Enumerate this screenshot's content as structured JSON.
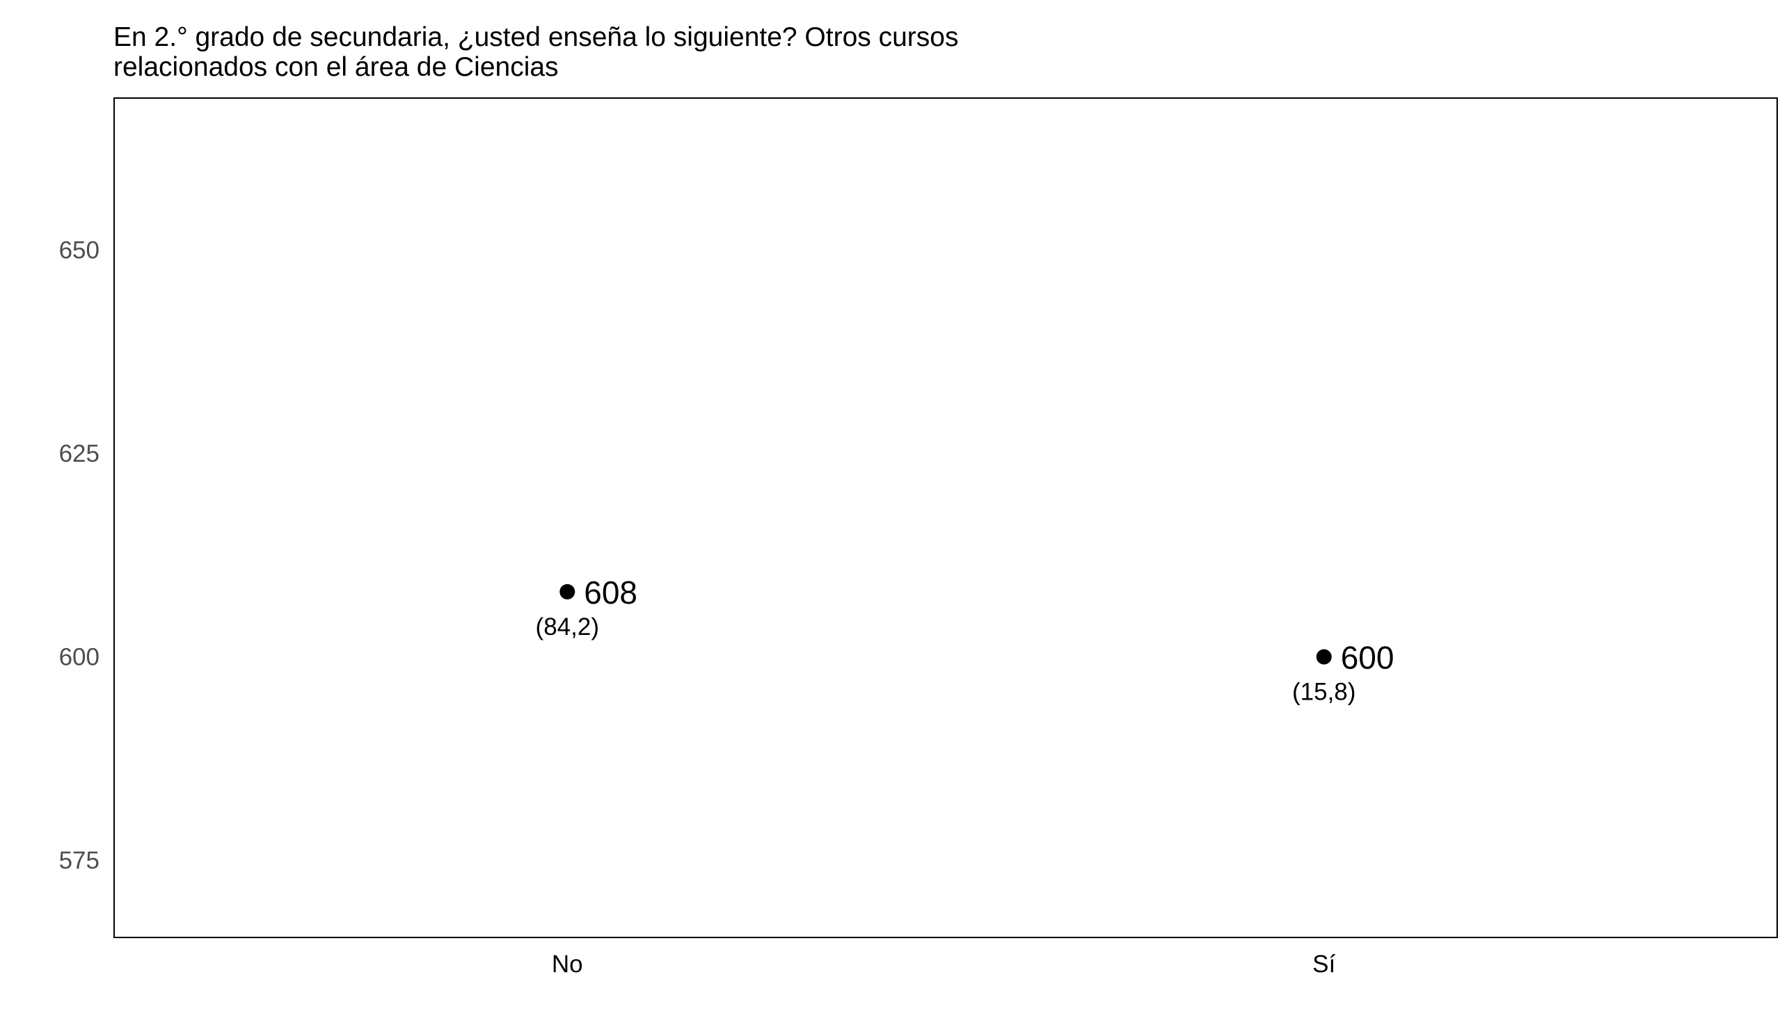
{
  "chart_data": {
    "type": "scatter",
    "title": "En 2.° grado de secundaria, ¿usted enseña lo siguiente? Otros cursos relacionados con el área de Ciencias",
    "title_lines": [
      "En 2.° grado de secundaria, ¿usted enseña lo siguiente? Otros cursos",
      "relacionados con el área de Ciencias"
    ],
    "xlabel": "",
    "ylabel": "",
    "categories": [
      "No",
      "Sí"
    ],
    "values": [
      608,
      600
    ],
    "value_labels": [
      "608",
      "600"
    ],
    "percent_labels": [
      "(84,2)",
      "(15,8)"
    ],
    "ylim": [
      565.5,
      668.7
    ],
    "yticks": [
      575,
      600,
      625,
      650
    ],
    "ytick_labels": [
      "575",
      "600",
      "625",
      "650"
    ],
    "grid": false,
    "legend": "none",
    "colors": {
      "point": "#000000",
      "frame": "#000000",
      "tick_text": "#4d4d4d",
      "text": "#000000",
      "background": "#ffffff"
    }
  }
}
